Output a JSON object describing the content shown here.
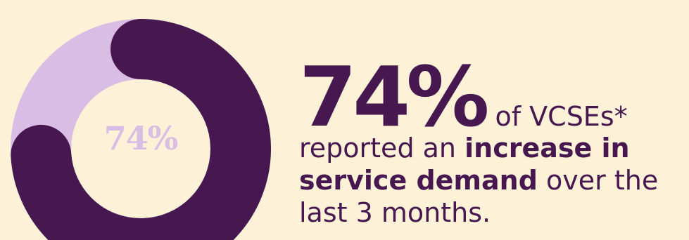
{
  "chart_data": {
    "type": "pie",
    "style": "donut",
    "value": 74,
    "center_label": "74%",
    "slices": [
      {
        "value": 74,
        "color": "#471850"
      },
      {
        "value": 26,
        "color": "#d9bde4"
      }
    ]
  },
  "colors": {
    "background": "#fdf1d8",
    "primary": "#471850",
    "secondary": "#d9bde4"
  },
  "headline": {
    "percent": "74%",
    "tail": "of VCSEs*"
  },
  "body": {
    "text1": "reported an",
    "bold1": "increase in service demand",
    "text2": "over the last 3 months."
  }
}
